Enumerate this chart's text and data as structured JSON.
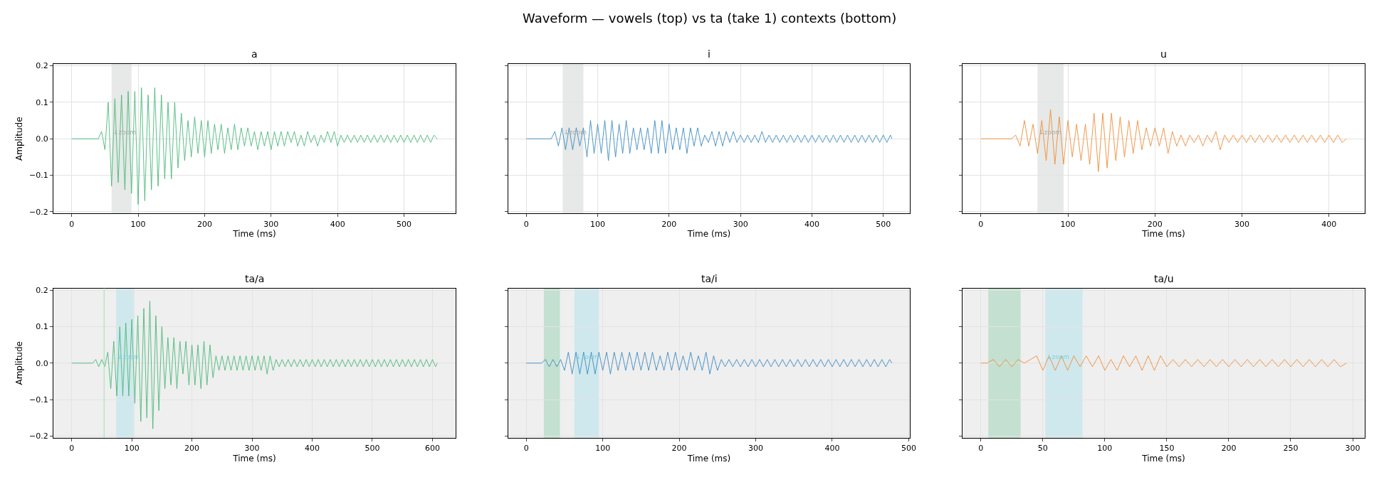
{
  "chart_data": [
    {
      "type": "line",
      "title": "a",
      "annotations": [
        "Waveform — vowels (top) vs ta (take 1) contexts (bottom)"
      ],
      "xlabel": "Time (ms)",
      "ylabel": "Amplitude",
      "xlim": [
        -27.5,
        577.5
      ],
      "xticks": [
        0,
        100,
        200,
        300,
        400,
        500
      ],
      "ylim": [
        -0.205,
        0.205
      ],
      "yticks": [
        {
          "value": -0.2,
          "label": "−0.2"
        },
        {
          "value": -0.1,
          "label": "−0.1"
        },
        {
          "value": 0,
          "label": "0.0"
        },
        {
          "value": 0.1,
          "label": "0.1"
        },
        {
          "value": 0.2,
          "label": "0.2"
        }
      ],
      "grid": true,
      "bands": [
        {
          "axis": "x",
          "from": 60,
          "to": 90,
          "color": "#e6e9e7",
          "label": "↓zoom"
        }
      ],
      "series": [
        {
          "color": "#48b978",
          "x": [
            0,
            40,
            45,
            50,
            55,
            60,
            65,
            70,
            75,
            80,
            85,
            90,
            95,
            100,
            105,
            110,
            115,
            120,
            125,
            130,
            135,
            140,
            145,
            150,
            155,
            160,
            165,
            170,
            175,
            180,
            185,
            190,
            195,
            200,
            205,
            210,
            215,
            220,
            225,
            230,
            235,
            240,
            245,
            250,
            255,
            260,
            265,
            270,
            275,
            280,
            285,
            290,
            295,
            300,
            305,
            310,
            315,
            320,
            325,
            330,
            335,
            340,
            345,
            350,
            355,
            360,
            365,
            370,
            375,
            380,
            385,
            390,
            395,
            400,
            405,
            410,
            415,
            420,
            425,
            430,
            435,
            440,
            445,
            450,
            455,
            460,
            465,
            470,
            475,
            480,
            485,
            490,
            495,
            500,
            505,
            510,
            515,
            520,
            525,
            530,
            535,
            540,
            545,
            550
          ],
          "values": [
            0,
            0,
            0.02,
            -0.03,
            0.1,
            -0.13,
            0.11,
            -0.12,
            0.12,
            -0.14,
            0.13,
            -0.15,
            0.13,
            -0.18,
            0.14,
            -0.17,
            0.12,
            -0.14,
            0.14,
            -0.13,
            0.12,
            -0.11,
            0.1,
            -0.11,
            0.1,
            -0.08,
            0.07,
            -0.06,
            0.05,
            -0.05,
            0.06,
            -0.04,
            0.05,
            -0.05,
            0.05,
            -0.04,
            0.04,
            -0.03,
            0.04,
            -0.04,
            0.03,
            -0.03,
            0.04,
            -0.03,
            0.03,
            -0.02,
            0.03,
            -0.02,
            0.02,
            -0.03,
            0.02,
            -0.02,
            0.02,
            -0.03,
            0.02,
            -0.02,
            0.02,
            -0.02,
            0.02,
            -0.01,
            0.02,
            -0.02,
            0.01,
            -0.02,
            0.02,
            -0.01,
            0.01,
            -0.02,
            0.01,
            -0.01,
            0.02,
            -0.01,
            0.02,
            -0.02,
            0.01,
            -0.01,
            0.01,
            -0.01,
            0.01,
            -0.01,
            0.01,
            -0.01,
            0.01,
            -0.01,
            0.01,
            -0.01,
            0.01,
            -0.01,
            0.01,
            -0.01,
            0.01,
            -0.01,
            0.01,
            -0.01,
            0.01,
            -0.01,
            0.01,
            -0.01,
            0.01,
            -0.01,
            0.01,
            -0.01,
            0.01,
            0
          ]
        }
      ]
    },
    {
      "type": "line",
      "title": "i",
      "xlabel": "Time (ms)",
      "xlim": [
        -25.6,
        537.6
      ],
      "xticks": [
        0,
        100,
        200,
        300,
        400,
        500
      ],
      "ylim": [
        -0.205,
        0.205
      ],
      "yticks": [
        {
          "value": -0.2,
          "label": null
        },
        {
          "value": -0.1,
          "label": null
        },
        {
          "value": 0,
          "label": null
        },
        {
          "value": 0.1,
          "label": null
        },
        {
          "value": 0.2,
          "label": null
        }
      ],
      "grid": true,
      "tick_labels": "x",
      "bands": [
        {
          "axis": "x",
          "from": 51,
          "to": 80,
          "color": "#e6e9e7",
          "label": "↓zoom"
        }
      ],
      "series": [
        {
          "color": "#3b8bc2",
          "x": [
            0,
            35,
            40,
            45,
            50,
            55,
            60,
            65,
            70,
            75,
            80,
            85,
            90,
            95,
            100,
            105,
            110,
            115,
            120,
            125,
            130,
            135,
            140,
            145,
            150,
            155,
            160,
            165,
            170,
            175,
            180,
            185,
            190,
            195,
            200,
            205,
            210,
            215,
            220,
            225,
            230,
            235,
            240,
            245,
            250,
            255,
            260,
            265,
            270,
            275,
            280,
            285,
            290,
            295,
            300,
            305,
            310,
            315,
            320,
            325,
            330,
            335,
            340,
            345,
            350,
            355,
            360,
            365,
            370,
            375,
            380,
            385,
            390,
            395,
            400,
            405,
            410,
            415,
            420,
            425,
            430,
            435,
            440,
            445,
            450,
            455,
            460,
            465,
            470,
            475,
            480,
            485,
            490,
            495,
            500,
            505,
            510,
            512
          ],
          "values": [
            0,
            0,
            0.02,
            -0.02,
            0.03,
            -0.03,
            0.03,
            -0.03,
            0.03,
            -0.02,
            0.03,
            -0.05,
            0.05,
            -0.04,
            0.04,
            -0.04,
            0.05,
            -0.06,
            0.05,
            -0.05,
            0.04,
            -0.04,
            0.05,
            -0.04,
            0.03,
            -0.03,
            0.03,
            -0.03,
            0.03,
            -0.04,
            0.05,
            -0.04,
            0.05,
            -0.04,
            0.04,
            -0.03,
            0.03,
            -0.03,
            0.03,
            -0.04,
            0.03,
            -0.02,
            0.03,
            -0.02,
            0.01,
            -0.01,
            0.02,
            -0.02,
            0.02,
            -0.02,
            0.02,
            -0.01,
            0.02,
            -0.01,
            0.01,
            -0.01,
            0.01,
            -0.01,
            0.01,
            -0.01,
            0.02,
            -0.01,
            0.01,
            -0.01,
            0.01,
            -0.01,
            0.01,
            -0.01,
            0.01,
            -0.01,
            0.01,
            -0.01,
            0.01,
            -0.01,
            0.01,
            -0.01,
            0.01,
            -0.01,
            0.01,
            -0.01,
            0.01,
            -0.01,
            0.01,
            -0.01,
            0.01,
            -0.01,
            0.01,
            -0.01,
            0.01,
            -0.01,
            0.01,
            -0.01,
            0.01,
            -0.01,
            0.01,
            -0.01,
            0.01,
            0
          ]
        }
      ]
    },
    {
      "type": "line",
      "title": "u",
      "xlabel": "Time (ms)",
      "xlim": [
        -21,
        441
      ],
      "xticks": [
        0,
        100,
        200,
        300,
        400
      ],
      "ylim": [
        -0.205,
        0.205
      ],
      "yticks": [
        {
          "value": -0.2,
          "label": null
        },
        {
          "value": -0.1,
          "label": null
        },
        {
          "value": 0,
          "label": null
        },
        {
          "value": 0.1,
          "label": null
        },
        {
          "value": 0.2,
          "label": null
        }
      ],
      "grid": true,
      "tick_labels": "x",
      "bands": [
        {
          "axis": "x",
          "from": 65,
          "to": 95,
          "color": "#e6e9e7",
          "label": "↓zoom"
        }
      ],
      "series": [
        {
          "color": "#ef8c35",
          "x": [
            0,
            35,
            40,
            45,
            50,
            55,
            60,
            65,
            70,
            75,
            80,
            85,
            90,
            95,
            100,
            105,
            110,
            115,
            120,
            125,
            130,
            135,
            140,
            145,
            150,
            155,
            160,
            165,
            170,
            175,
            180,
            185,
            190,
            195,
            200,
            205,
            210,
            215,
            220,
            225,
            230,
            235,
            240,
            245,
            250,
            255,
            260,
            265,
            270,
            275,
            280,
            285,
            290,
            295,
            300,
            305,
            310,
            315,
            320,
            325,
            330,
            335,
            340,
            345,
            350,
            355,
            360,
            365,
            370,
            375,
            380,
            385,
            390,
            395,
            400,
            405,
            410,
            415,
            420
          ],
          "values": [
            0,
            0,
            0.01,
            -0.02,
            0.05,
            -0.02,
            0.04,
            -0.04,
            0.05,
            -0.06,
            0.08,
            -0.07,
            0.06,
            -0.07,
            0.05,
            -0.05,
            0.04,
            -0.06,
            0.04,
            -0.07,
            0.07,
            -0.09,
            0.07,
            -0.08,
            0.07,
            -0.06,
            0.06,
            -0.05,
            0.05,
            -0.04,
            0.05,
            -0.03,
            0.03,
            -0.02,
            0.03,
            -0.02,
            0.03,
            -0.04,
            0.02,
            -0.02,
            0.01,
            -0.02,
            0.01,
            -0.01,
            0.01,
            -0.02,
            0.01,
            -0.01,
            0.02,
            -0.03,
            0.01,
            -0.01,
            0.01,
            -0.01,
            0.01,
            -0.01,
            0.01,
            -0.01,
            0.01,
            -0.01,
            0.01,
            -0.01,
            0.01,
            -0.01,
            0.01,
            -0.01,
            0.01,
            -0.01,
            0.01,
            -0.01,
            0.01,
            -0.01,
            0.01,
            -0.01,
            0.01,
            -0.01,
            0.01,
            -0.01,
            0
          ]
        }
      ]
    },
    {
      "type": "line",
      "title": "ta/a",
      "xlabel": "Time (ms)",
      "ylabel": "Amplitude",
      "xlim": [
        -30.4,
        638.4
      ],
      "xticks": [
        0,
        100,
        200,
        300,
        400,
        500,
        600
      ],
      "ylim": [
        -0.205,
        0.205
      ],
      "yticks": [
        {
          "value": -0.2,
          "label": "−0.2"
        },
        {
          "value": -0.1,
          "label": "−0.1"
        },
        {
          "value": 0,
          "label": "0.0"
        },
        {
          "value": 0.1,
          "label": "0.1"
        },
        {
          "value": 0.2,
          "label": "0.2"
        }
      ],
      "grid": true,
      "bands": [
        {
          "axis": "x",
          "from": -30.4,
          "to": 638.4,
          "color": "#efefef"
        },
        {
          "axis": "x",
          "from": 74,
          "to": 104,
          "color": "#cfe8ed",
          "label": "↓zoom"
        }
      ],
      "ref_lines": [
        {
          "axis": "x",
          "value": 54,
          "color": "#b5dcc4"
        }
      ],
      "series": [
        {
          "color": "#48b978",
          "x": [
            0,
            35,
            40,
            45,
            50,
            55,
            60,
            65,
            70,
            75,
            80,
            85,
            90,
            95,
            100,
            105,
            110,
            115,
            120,
            125,
            130,
            135,
            140,
            145,
            150,
            155,
            160,
            165,
            170,
            175,
            180,
            185,
            190,
            195,
            200,
            205,
            210,
            215,
            220,
            225,
            230,
            235,
            240,
            245,
            250,
            255,
            260,
            265,
            270,
            275,
            280,
            285,
            290,
            295,
            300,
            305,
            310,
            315,
            320,
            325,
            330,
            335,
            340,
            345,
            350,
            355,
            360,
            365,
            370,
            375,
            380,
            385,
            390,
            395,
            400,
            405,
            410,
            415,
            420,
            425,
            430,
            435,
            440,
            445,
            450,
            455,
            460,
            465,
            470,
            475,
            480,
            485,
            490,
            495,
            500,
            505,
            510,
            515,
            520,
            525,
            530,
            535,
            540,
            545,
            550,
            555,
            560,
            565,
            570,
            575,
            580,
            585,
            590,
            595,
            600,
            605,
            608
          ],
          "values": [
            0,
            0,
            0.01,
            -0.01,
            0.01,
            -0.01,
            0.03,
            -0.07,
            0.06,
            -0.09,
            0.1,
            -0.09,
            0.11,
            -0.09,
            0.12,
            -0.11,
            0.13,
            -0.16,
            0.15,
            -0.15,
            0.17,
            -0.18,
            0.13,
            -0.13,
            0.1,
            -0.07,
            0.07,
            -0.06,
            0.07,
            -0.07,
            0.06,
            -0.03,
            0.06,
            -0.06,
            0.05,
            -0.06,
            0.05,
            -0.07,
            0.06,
            -0.06,
            0.05,
            -0.04,
            0.02,
            -0.02,
            0.02,
            -0.02,
            0.02,
            -0.02,
            0.02,
            -0.02,
            0.02,
            -0.02,
            0.02,
            -0.02,
            0.02,
            -0.02,
            0.02,
            -0.02,
            0.02,
            -0.03,
            0.02,
            -0.02,
            0.01,
            -0.01,
            0.01,
            -0.01,
            0.01,
            -0.01,
            0.01,
            -0.01,
            0.01,
            -0.01,
            0.01,
            -0.01,
            0.01,
            -0.01,
            0.01,
            -0.01,
            0.01,
            -0.01,
            0.01,
            -0.01,
            0.01,
            -0.01,
            0.01,
            -0.01,
            0.01,
            -0.01,
            0.01,
            -0.01,
            0.01,
            -0.01,
            0.01,
            -0.01,
            0.01,
            -0.01,
            0.01,
            -0.01,
            0.01,
            -0.01,
            0.01,
            -0.01,
            0.01,
            -0.01,
            0.01,
            -0.01,
            0.01,
            -0.01,
            0.01,
            -0.01,
            0.01,
            -0.01,
            0.01,
            -0.01,
            0.01,
            -0.01,
            0
          ]
        }
      ]
    },
    {
      "type": "line",
      "title": "ta/i",
      "xlabel": "Time (ms)",
      "xlim": [
        -23.9,
        501.9
      ],
      "xticks": [
        0,
        100,
        200,
        300,
        400,
        500
      ],
      "ylim": [
        -0.205,
        0.205
      ],
      "yticks": [
        {
          "value": -0.2,
          "label": null
        },
        {
          "value": -0.1,
          "label": null
        },
        {
          "value": 0,
          "label": null
        },
        {
          "value": 0.1,
          "label": null
        },
        {
          "value": 0.2,
          "label": null
        }
      ],
      "grid": true,
      "tick_labels": "x",
      "bands": [
        {
          "axis": "x",
          "from": -23.9,
          "to": 501.9,
          "color": "#efefef"
        },
        {
          "axis": "x",
          "from": 23,
          "to": 44,
          "color": "#c3e0d0"
        },
        {
          "axis": "x",
          "from": 63,
          "to": 95,
          "color": "#cfe8ed",
          "label": "↓zoom"
        }
      ],
      "series": [
        {
          "color": "#3b8bc2",
          "x": [
            0,
            20,
            25,
            30,
            35,
            40,
            45,
            50,
            55,
            60,
            65,
            70,
            75,
            80,
            85,
            90,
            95,
            100,
            105,
            110,
            115,
            120,
            125,
            130,
            135,
            140,
            145,
            150,
            155,
            160,
            165,
            170,
            175,
            180,
            185,
            190,
            195,
            200,
            205,
            210,
            215,
            220,
            225,
            230,
            235,
            240,
            245,
            250,
            255,
            260,
            265,
            270,
            275,
            280,
            285,
            290,
            295,
            300,
            305,
            310,
            315,
            320,
            325,
            330,
            335,
            340,
            345,
            350,
            355,
            360,
            365,
            370,
            375,
            380,
            385,
            390,
            395,
            400,
            405,
            410,
            415,
            420,
            425,
            430,
            435,
            440,
            445,
            450,
            455,
            460,
            465,
            470,
            475,
            478
          ],
          "values": [
            0,
            0,
            0.01,
            -0.01,
            0.01,
            -0.01,
            0.01,
            -0.02,
            0.03,
            -0.03,
            0.03,
            -0.03,
            0.03,
            -0.03,
            0.03,
            -0.03,
            0.03,
            -0.02,
            0.03,
            -0.03,
            0.03,
            -0.02,
            0.03,
            -0.02,
            0.03,
            -0.02,
            0.03,
            -0.02,
            0.03,
            -0.02,
            0.03,
            -0.02,
            0.02,
            -0.02,
            0.03,
            -0.02,
            0.03,
            -0.02,
            0.02,
            -0.02,
            0.03,
            -0.02,
            0.02,
            -0.02,
            0.03,
            -0.03,
            0.02,
            -0.02,
            0.01,
            -0.01,
            0.01,
            -0.01,
            0.01,
            -0.01,
            0.01,
            -0.01,
            0.01,
            -0.01,
            0.01,
            -0.01,
            0.01,
            -0.01,
            0.01,
            -0.01,
            0.01,
            -0.01,
            0.01,
            -0.01,
            0.01,
            -0.01,
            0.01,
            -0.01,
            0.01,
            -0.01,
            0.01,
            -0.01,
            0.01,
            -0.01,
            0.01,
            -0.01,
            0.01,
            -0.01,
            0.01,
            -0.01,
            0.01,
            -0.01,
            0.01,
            -0.01,
            0.01,
            -0.01,
            0.01,
            -0.01,
            0.01,
            0
          ]
        }
      ]
    },
    {
      "type": "line",
      "title": "ta/u",
      "xlabel": "Time (ms)",
      "xlim": [
        -14.75,
        309.75
      ],
      "xticks": [
        0,
        50,
        100,
        150,
        200,
        250,
        300
      ],
      "ylim": [
        -0.205,
        0.205
      ],
      "yticks": [
        {
          "value": -0.2,
          "label": null
        },
        {
          "value": -0.1,
          "label": null
        },
        {
          "value": 0,
          "label": null
        },
        {
          "value": 0.1,
          "label": null
        },
        {
          "value": 0.2,
          "label": null
        }
      ],
      "grid": true,
      "tick_labels": "x",
      "bands": [
        {
          "axis": "x",
          "from": -14.75,
          "to": 309.75,
          "color": "#efefef"
        },
        {
          "axis": "x",
          "from": 6,
          "to": 32,
          "color": "#c3e0d0"
        },
        {
          "axis": "x",
          "from": 52,
          "to": 82,
          "color": "#cfe8ed",
          "label": "↓zoom"
        }
      ],
      "series": [
        {
          "color": "#ef8c35",
          "x": [
            0,
            5,
            10,
            15,
            20,
            25,
            30,
            35,
            40,
            45,
            50,
            55,
            60,
            65,
            70,
            75,
            80,
            85,
            90,
            95,
            100,
            105,
            110,
            115,
            120,
            125,
            130,
            135,
            140,
            145,
            150,
            155,
            160,
            165,
            170,
            175,
            180,
            185,
            190,
            195,
            200,
            205,
            210,
            215,
            220,
            225,
            230,
            235,
            240,
            245,
            250,
            255,
            260,
            265,
            270,
            275,
            280,
            285,
            290,
            295
          ],
          "values": [
            0,
            0,
            0.01,
            -0.01,
            0.01,
            -0.01,
            0.01,
            0,
            0.01,
            0.02,
            -0.02,
            0.02,
            -0.02,
            0.02,
            -0.02,
            0.02,
            -0.01,
            0.02,
            -0.01,
            0.02,
            -0.02,
            0.01,
            -0.02,
            0.02,
            -0.01,
            0.02,
            -0.02,
            0.02,
            -0.02,
            0.02,
            -0.01,
            0.01,
            -0.01,
            0.01,
            -0.01,
            0.01,
            -0.01,
            0.01,
            -0.01,
            0.01,
            -0.01,
            0.01,
            -0.01,
            0.01,
            -0.01,
            0.01,
            -0.01,
            0.01,
            -0.01,
            0.01,
            -0.01,
            0.01,
            -0.01,
            0.01,
            -0.01,
            0.01,
            -0.01,
            0.01,
            -0.01,
            0
          ]
        }
      ]
    }
  ]
}
